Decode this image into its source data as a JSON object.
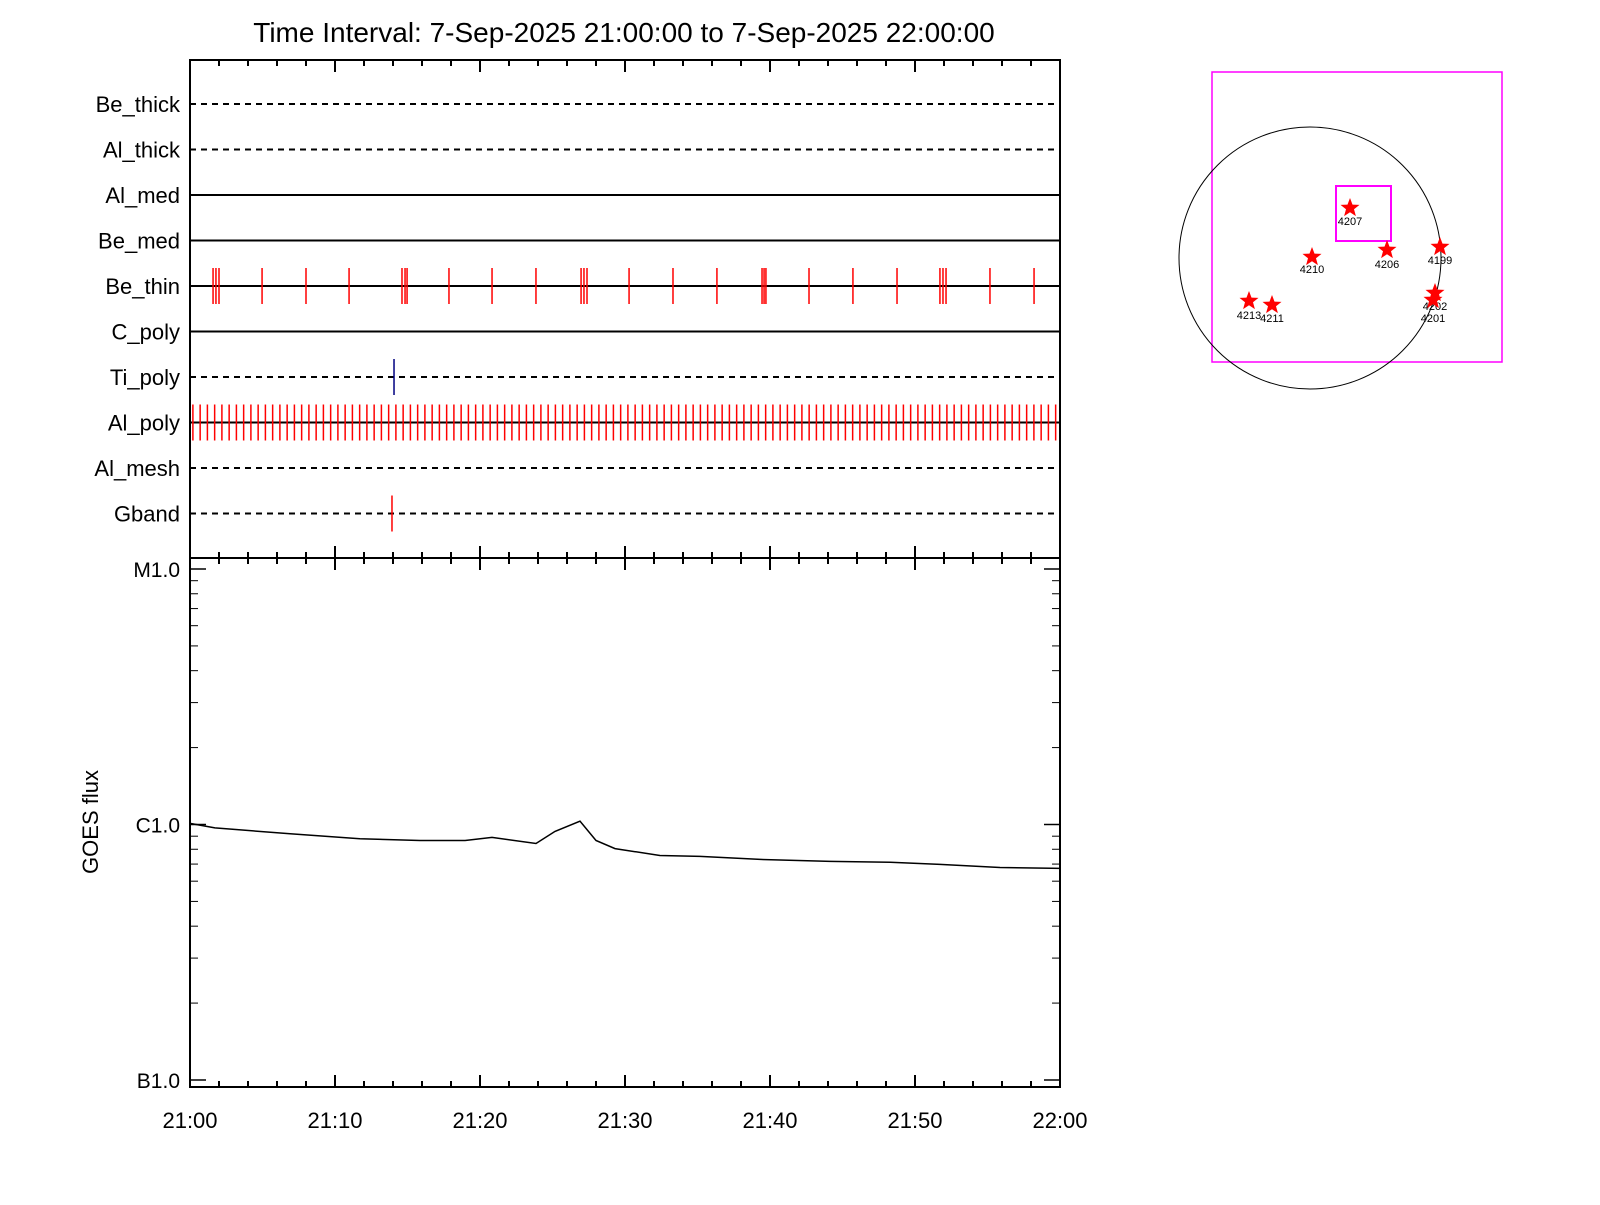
{
  "chart_data": [
    {
      "type": "event",
      "title": "Time Interval:  7-Sep-2025 21:00:00 to  7-Sep-2025 22:00:00",
      "xlim": [
        0,
        60
      ],
      "rows": [
        {
          "name": "Be_thick",
          "style": "dashed",
          "color": "#000000",
          "events": []
        },
        {
          "name": "Al_thick",
          "style": "dashed",
          "color": "#000000",
          "events": []
        },
        {
          "name": "Al_med",
          "style": "solid",
          "color": "#000000",
          "events": []
        },
        {
          "name": "Be_med",
          "style": "solid",
          "color": "#000000",
          "events": []
        },
        {
          "name": "Be_thin",
          "style": "solid",
          "color": "#ff0000",
          "events": [
            1.59,
            1.79,
            2.0,
            4.97,
            8.0,
            10.97,
            14.62,
            14.83,
            14.97,
            17.86,
            20.83,
            23.86,
            26.97,
            27.17,
            27.38,
            30.28,
            33.31,
            36.34,
            39.45,
            39.59,
            39.72,
            42.69,
            45.72,
            48.76,
            51.72,
            51.93,
            52.14,
            55.17,
            58.21
          ]
        },
        {
          "name": "C_poly",
          "style": "solid",
          "color": "#000000",
          "events": []
        },
        {
          "name": "Ti_poly",
          "style": "dashed",
          "color": "#000080",
          "events": [
            14.07
          ]
        },
        {
          "name": "Al_poly",
          "style": "solid",
          "color": "#ff0000",
          "events": [
            0.2,
            0.7,
            1.2,
            1.7,
            2.2,
            2.7,
            3.2,
            3.7,
            4.2,
            4.7,
            5.2,
            5.7,
            6.2,
            6.7,
            7.2,
            7.7,
            8.2,
            8.7,
            9.2,
            9.7,
            10.2,
            10.7,
            11.2,
            11.7,
            12.2,
            12.7,
            13.2,
            13.7,
            14.2,
            14.7,
            15.2,
            15.7,
            16.2,
            16.7,
            17.2,
            17.7,
            18.2,
            18.7,
            19.2,
            19.7,
            20.2,
            20.7,
            21.2,
            21.7,
            22.2,
            22.7,
            23.2,
            23.7,
            24.2,
            24.7,
            25.2,
            25.7,
            26.2,
            26.7,
            27.2,
            27.7,
            28.2,
            28.7,
            29.2,
            29.7,
            30.2,
            30.7,
            31.2,
            31.7,
            32.2,
            32.7,
            33.2,
            33.7,
            34.2,
            34.7,
            35.2,
            35.7,
            36.2,
            36.7,
            37.2,
            37.7,
            38.2,
            38.7,
            39.2,
            39.7,
            40.2,
            40.7,
            41.2,
            41.7,
            42.2,
            42.7,
            43.2,
            43.7,
            44.2,
            44.7,
            45.2,
            45.7,
            46.2,
            46.7,
            47.2,
            47.7,
            48.2,
            48.7,
            49.2,
            49.7,
            50.2,
            50.7,
            51.2,
            51.7,
            52.2,
            52.7,
            53.2,
            53.7,
            54.2,
            54.7,
            55.2,
            55.7,
            56.2,
            56.7,
            57.2,
            57.7,
            58.2,
            58.7,
            59.2,
            59.7
          ]
        },
        {
          "name": "Al_mesh",
          "style": "dashed",
          "color": "#000000",
          "events": []
        },
        {
          "name": "Gband",
          "style": "dashed",
          "color": "#ff0000",
          "events": [
            13.93
          ]
        }
      ]
    },
    {
      "type": "line",
      "ylabel": "GOES flux",
      "log_y": true,
      "color": "#000000",
      "xlim": [
        0,
        60
      ],
      "xticks": [
        {
          "value": 0,
          "label": "21:00"
        },
        {
          "value": 10,
          "label": "21:10"
        },
        {
          "value": 20,
          "label": "21:20"
        },
        {
          "value": 30,
          "label": "21:30"
        },
        {
          "value": 40,
          "label": "21:40"
        },
        {
          "value": 50,
          "label": "21:50"
        },
        {
          "value": 60,
          "label": "22:00"
        }
      ],
      "ylim": [
        1e-07,
        1e-05
      ],
      "yticks": [
        {
          "value": 1e-07,
          "label": "B1.0"
        },
        {
          "value": 1e-06,
          "label": "C1.0"
        },
        {
          "value": 1e-05,
          "label": "M1.0"
        }
      ],
      "x": [
        0,
        1.72,
        6.9,
        11.72,
        15.86,
        18.97,
        20.83,
        23.86,
        25.17,
        26.9,
        28.0,
        29.31,
        32.41,
        35.17,
        39.31,
        44.14,
        48.28,
        51.72,
        55.86,
        60
      ],
      "values": [
        1.01e-06,
        9.7e-07,
        9.2e-07,
        8.8e-07,
        8.66e-07,
        8.66e-07,
        8.9e-07,
        8.43e-07,
        9.4e-07,
        1.03e-06,
        8.66e-07,
        8.05e-07,
        7.56e-07,
        7.5e-07,
        7.3e-07,
        7.17e-07,
        7.11e-07,
        6.98e-07,
        6.79e-07,
        6.73e-07
      ]
    }
  ],
  "solar_map": {
    "regions": [
      "4207",
      "4210",
      "4206",
      "4199",
      "4202",
      "4201",
      "4213",
      "4211"
    ]
  }
}
